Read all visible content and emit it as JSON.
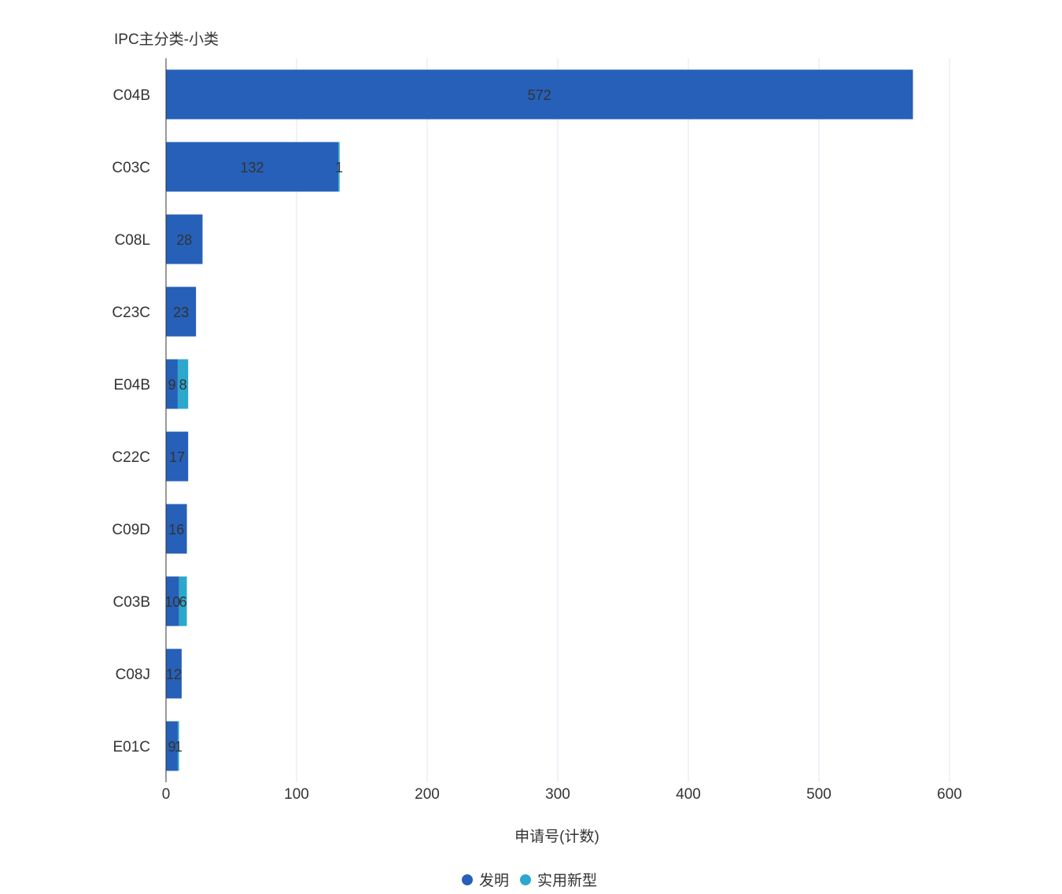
{
  "chart_data": {
    "type": "bar",
    "orientation": "horizontal",
    "stacked": true,
    "title": "",
    "ylabel": "IPC主分类-小类",
    "xlabel": "申请号(计数)",
    "categories": [
      "C04B",
      "C03C",
      "C08L",
      "C23C",
      "E04B",
      "C22C",
      "C09D",
      "C03B",
      "C08J",
      "E01C"
    ],
    "series": [
      {
        "name": "发明",
        "color": "#2660b8",
        "values": [
          572,
          132,
          28,
          23,
          9,
          17,
          16,
          10,
          12,
          9
        ]
      },
      {
        "name": "实用新型",
        "color": "#2ba8cc",
        "values": [
          0,
          1,
          0,
          0,
          8,
          0,
          0,
          6,
          0,
          1
        ]
      }
    ],
    "xlim": [
      0,
      600
    ],
    "xticks": [
      "0",
      "100",
      "200",
      "300",
      "400",
      "500",
      "600"
    ],
    "grid": true,
    "legend_position": "bottom-center"
  }
}
